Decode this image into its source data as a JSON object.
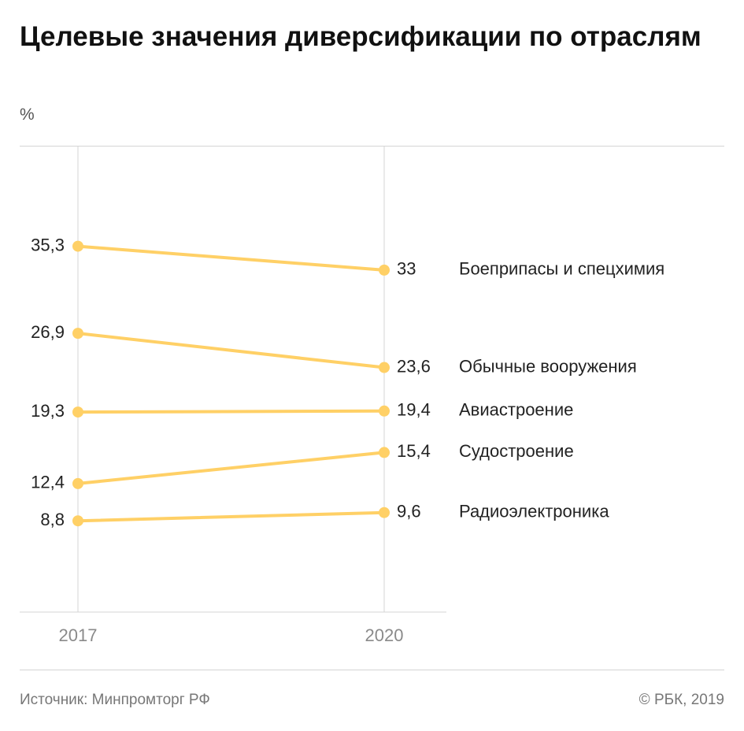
{
  "header": {
    "title": "Целевые значения диверсификации по отраслям",
    "unit": "%"
  },
  "footer": {
    "source": "Источник: Минпромторг РФ",
    "copyright": "© РБК, 2019"
  },
  "colors": {
    "line": "#ffd066",
    "axis": "#d4d4d4",
    "text": "#222222",
    "muted": "#777777"
  },
  "chart_data": {
    "type": "line",
    "title": "Целевые значения диверсификации по отраслям",
    "ylabel": "%",
    "xlabel": "",
    "x": [
      "2017",
      "2020"
    ],
    "ylim": [
      0,
      45
    ],
    "grid": false,
    "series": [
      {
        "name": "Боеприпасы и спецхимия",
        "values": [
          35.3,
          33
        ],
        "labels": [
          "35,3",
          "33"
        ]
      },
      {
        "name": "Обычные вооружения",
        "values": [
          26.9,
          23.6
        ],
        "labels": [
          "26,9",
          "23,6"
        ]
      },
      {
        "name": "Авиастроение",
        "values": [
          19.3,
          19.4
        ],
        "labels": [
          "19,3",
          "19,4"
        ]
      },
      {
        "name": "Судостроение",
        "values": [
          12.4,
          15.4
        ],
        "labels": [
          "12,4",
          "15,4"
        ]
      },
      {
        "name": "Радиоэлектроника",
        "values": [
          8.8,
          9.6
        ],
        "labels": [
          "8,8",
          "9,6"
        ]
      }
    ]
  }
}
